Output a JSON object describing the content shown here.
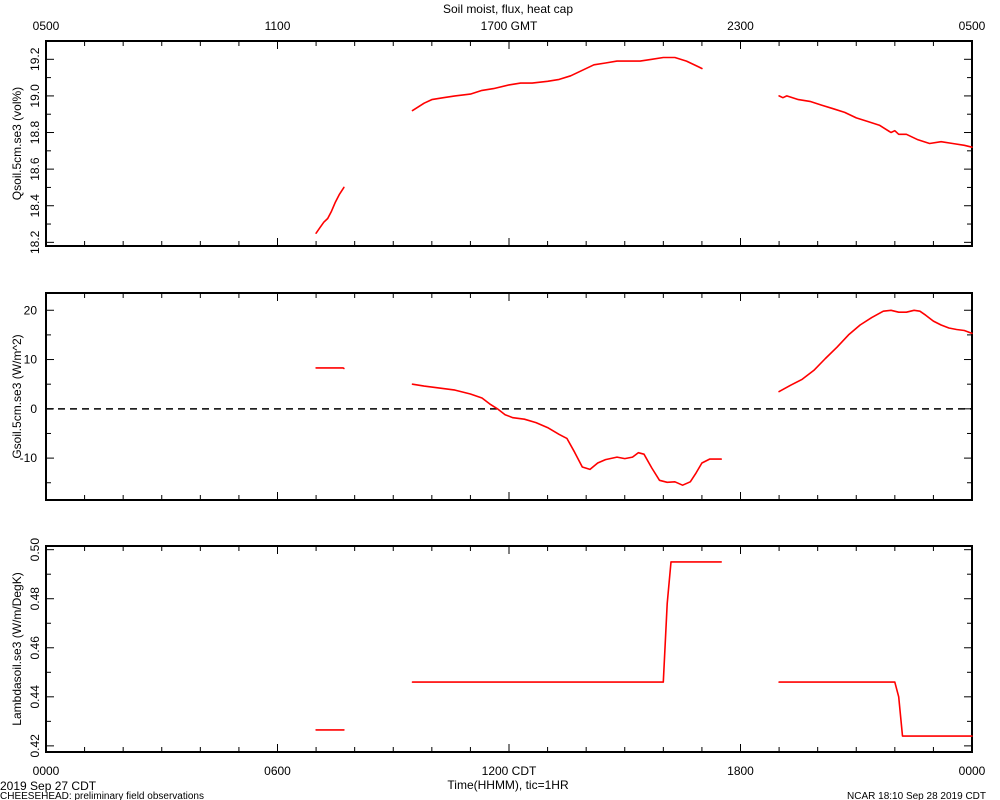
{
  "title": "Soil moist, flux, heat cap",
  "footer": {
    "date_label": "2019 Sep 27 CDT",
    "project_label": "CHEESEHEAD: preliminary field observations",
    "stamp": "NCAR 18:10 Sep 28 2019 CDT"
  },
  "x_axis": {
    "top_tick_labels": [
      "0500",
      "1100",
      "1700 GMT",
      "2300",
      "0500"
    ],
    "bottom_tick_labels": [
      "0000",
      "0600",
      "1200 CDT",
      "1800",
      "0000"
    ],
    "xlabel": "Time(HHMM), tic=1HR",
    "range_hours_cdt": [
      0,
      24
    ]
  },
  "colors": {
    "series": "#ff0000",
    "axes": "#000000",
    "zero_line": "#000000"
  },
  "chart_data": [
    {
      "type": "line",
      "ylabel": "Qsoil.5cm.se3 (vol%)",
      "ylim": [
        18.18,
        19.3
      ],
      "yticks": [
        18.2,
        18.4,
        18.6,
        18.8,
        19.0,
        19.2
      ],
      "ytick_labels": [
        "18.2",
        "18.4",
        "18.6",
        "18.8",
        "19.0",
        "19.2"
      ],
      "grid": false,
      "series": [
        {
          "segments": [
            [
              [
                7.0,
                18.25
              ],
              [
                7.1,
                18.28
              ],
              [
                7.2,
                18.31
              ],
              [
                7.3,
                18.33
              ],
              [
                7.4,
                18.37
              ],
              [
                7.5,
                18.42
              ],
              [
                7.6,
                18.46
              ],
              [
                7.72,
                18.5
              ]
            ],
            [
              [
                9.5,
                18.92
              ],
              [
                9.8,
                18.96
              ],
              [
                10.0,
                18.98
              ],
              [
                10.3,
                18.99
              ],
              [
                10.6,
                19.0
              ],
              [
                11.0,
                19.01
              ],
              [
                11.3,
                19.03
              ],
              [
                11.6,
                19.04
              ],
              [
                12.0,
                19.06
              ],
              [
                12.3,
                19.07
              ],
              [
                12.6,
                19.07
              ],
              [
                13.0,
                19.08
              ],
              [
                13.3,
                19.09
              ],
              [
                13.6,
                19.11
              ],
              [
                13.9,
                19.14
              ],
              [
                14.2,
                19.17
              ],
              [
                14.5,
                19.18
              ],
              [
                14.8,
                19.19
              ],
              [
                15.1,
                19.19
              ],
              [
                15.4,
                19.19
              ],
              [
                15.7,
                19.2
              ],
              [
                16.0,
                19.21
              ],
              [
                16.3,
                19.21
              ],
              [
                16.6,
                19.19
              ],
              [
                16.9,
                19.16
              ],
              [
                17.0,
                19.15
              ]
            ],
            [
              [
                19.0,
                19.0
              ],
              [
                19.1,
                18.99
              ],
              [
                19.2,
                19.0
              ],
              [
                19.5,
                18.98
              ],
              [
                19.8,
                18.97
              ],
              [
                20.1,
                18.95
              ],
              [
                20.4,
                18.93
              ],
              [
                20.7,
                18.91
              ],
              [
                21.0,
                18.88
              ],
              [
                21.3,
                18.86
              ],
              [
                21.6,
                18.84
              ],
              [
                21.9,
                18.8
              ],
              [
                22.0,
                18.81
              ],
              [
                22.1,
                18.79
              ],
              [
                22.3,
                18.79
              ],
              [
                22.6,
                18.76
              ],
              [
                22.9,
                18.74
              ],
              [
                23.2,
                18.75
              ],
              [
                23.5,
                18.74
              ],
              [
                23.8,
                18.73
              ],
              [
                24.0,
                18.72
              ]
            ]
          ]
        }
      ]
    },
    {
      "type": "line",
      "ylabel": "Gsoil.5cm.se3 (W/m^2)",
      "ylim": [
        -18.5,
        23.5
      ],
      "yticks": [
        -10,
        0,
        10,
        20
      ],
      "ytick_labels": [
        "-10",
        "0",
        "10",
        "20"
      ],
      "zero_line": 0,
      "grid": false,
      "series": [
        {
          "segments": [
            [
              [
                7.0,
                8.3
              ],
              [
                7.7,
                8.3
              ],
              [
                7.72,
                8.2
              ]
            ],
            [
              [
                9.5,
                5.0
              ],
              [
                9.8,
                4.6
              ],
              [
                10.2,
                4.2
              ],
              [
                10.6,
                3.8
              ],
              [
                11.0,
                3.0
              ],
              [
                11.3,
                2.2
              ],
              [
                11.5,
                1.0
              ],
              [
                11.7,
                0.0
              ],
              [
                11.9,
                -1.2
              ],
              [
                12.1,
                -1.8
              ],
              [
                12.4,
                -2.1
              ],
              [
                12.7,
                -2.8
              ],
              [
                13.0,
                -3.8
              ],
              [
                13.3,
                -5.2
              ],
              [
                13.5,
                -6.0
              ],
              [
                13.7,
                -8.8
              ],
              [
                13.9,
                -11.8
              ],
              [
                14.1,
                -12.3
              ],
              [
                14.3,
                -11.0
              ],
              [
                14.5,
                -10.3
              ],
              [
                14.8,
                -9.8
              ],
              [
                15.0,
                -10.1
              ],
              [
                15.2,
                -9.8
              ],
              [
                15.35,
                -8.9
              ],
              [
                15.5,
                -9.2
              ],
              [
                15.7,
                -12.0
              ],
              [
                15.9,
                -14.5
              ],
              [
                16.1,
                -14.9
              ],
              [
                16.3,
                -14.8
              ],
              [
                16.5,
                -15.5
              ],
              [
                16.7,
                -14.8
              ],
              [
                16.85,
                -13.0
              ],
              [
                17.0,
                -11.0
              ],
              [
                17.2,
                -10.2
              ],
              [
                17.5,
                -10.2
              ]
            ],
            [
              [
                19.0,
                3.5
              ],
              [
                19.3,
                4.8
              ],
              [
                19.6,
                6.0
              ],
              [
                19.9,
                7.8
              ],
              [
                20.2,
                10.2
              ],
              [
                20.5,
                12.5
              ],
              [
                20.8,
                15.0
              ],
              [
                21.1,
                17.0
              ],
              [
                21.4,
                18.5
              ],
              [
                21.7,
                19.8
              ],
              [
                21.9,
                20.0
              ],
              [
                22.1,
                19.6
              ],
              [
                22.3,
                19.6
              ],
              [
                22.5,
                20.0
              ],
              [
                22.65,
                19.8
              ],
              [
                22.8,
                19.0
              ],
              [
                23.0,
                17.8
              ],
              [
                23.2,
                17.0
              ],
              [
                23.4,
                16.4
              ],
              [
                23.6,
                16.1
              ],
              [
                23.8,
                15.9
              ],
              [
                24.0,
                15.3
              ]
            ]
          ]
        }
      ]
    },
    {
      "type": "line",
      "ylabel": "Lambdasoil.se3 (W/m/DegK)",
      "ylim": [
        0.4175,
        0.5015
      ],
      "yticks": [
        0.42,
        0.44,
        0.46,
        0.48,
        0.5
      ],
      "ytick_labels": [
        "0.42",
        "0.44",
        "0.46",
        "0.48",
        "0.50"
      ],
      "grid": false,
      "series": [
        {
          "segments": [
            [
              [
                7.0,
                0.4265
              ],
              [
                7.72,
                0.4265
              ]
            ],
            [
              [
                9.5,
                0.446
              ],
              [
                15.0,
                0.446
              ],
              [
                16.0,
                0.446
              ],
              [
                16.1,
                0.478
              ],
              [
                16.2,
                0.495
              ],
              [
                17.0,
                0.495
              ],
              [
                17.5,
                0.495
              ]
            ],
            [
              [
                19.0,
                0.446
              ],
              [
                20.5,
                0.446
              ],
              [
                21.5,
                0.446
              ],
              [
                22.0,
                0.446
              ],
              [
                22.1,
                0.44
              ],
              [
                22.2,
                0.424
              ],
              [
                24.0,
                0.424
              ]
            ]
          ]
        }
      ]
    }
  ]
}
